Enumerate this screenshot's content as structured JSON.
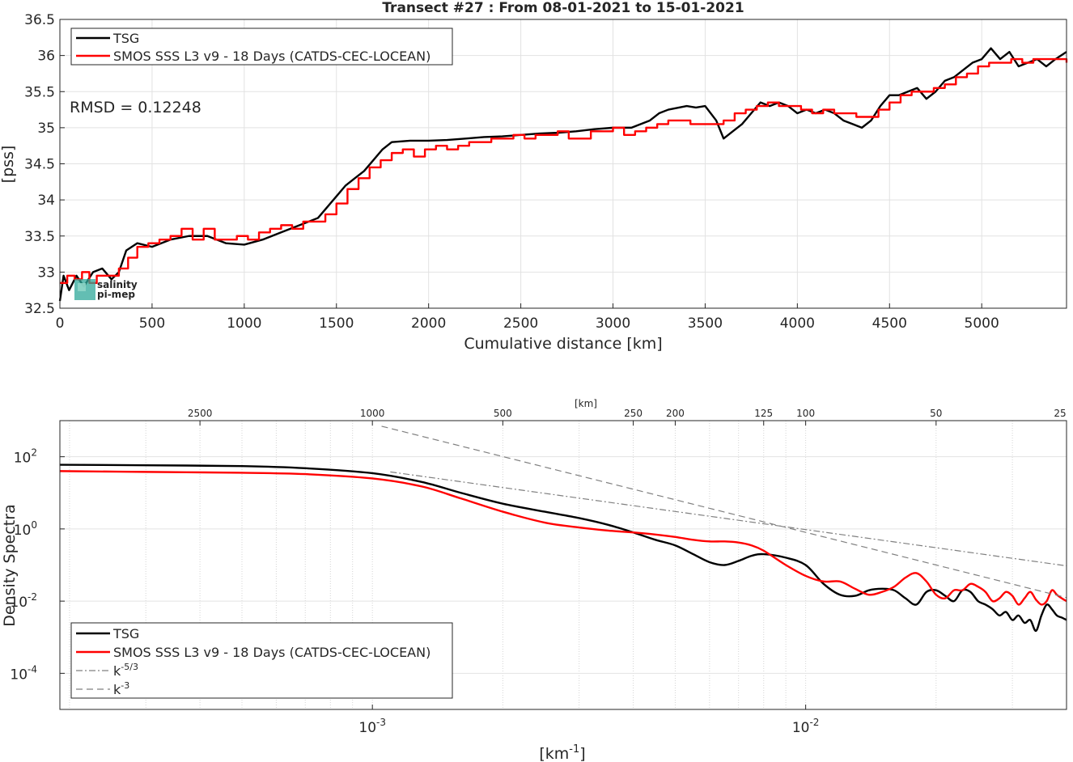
{
  "figure": {
    "title": "Transect #27 : From 08-01-2021 to 15-01-2021",
    "logo_text": [
      "salinity",
      "pi-mep"
    ]
  },
  "chart_data": [
    {
      "type": "line",
      "title": "Transect #27 : From 08-01-2021 to 15-01-2021",
      "xlabel": "Cumulative distance [km]",
      "ylabel": "[pss]",
      "xlim": [
        0,
        5460
      ],
      "ylim": [
        32.5,
        36.5
      ],
      "xticks": [
        0,
        500,
        1000,
        1500,
        2000,
        2500,
        3000,
        3500,
        4000,
        4500,
        5000
      ],
      "yticks": [
        32.5,
        33,
        33.5,
        34,
        34.5,
        35,
        35.5,
        36,
        36.5
      ],
      "grid": true,
      "legend_position": "top-left",
      "annotation": "RMSD = 0.12248",
      "series": [
        {
          "name": "TSG",
          "color": "#000000",
          "x": [
            0,
            20,
            50,
            90,
            130,
            180,
            230,
            280,
            320,
            360,
            420,
            500,
            600,
            700,
            800,
            900,
            1000,
            1100,
            1200,
            1300,
            1400,
            1450,
            1500,
            1550,
            1600,
            1650,
            1700,
            1750,
            1800,
            1900,
            2000,
            2100,
            2200,
            2300,
            2400,
            2500,
            2600,
            2700,
            2800,
            2900,
            3000,
            3100,
            3200,
            3250,
            3300,
            3400,
            3450,
            3500,
            3560,
            3600,
            3650,
            3700,
            3750,
            3800,
            3850,
            3900,
            3950,
            4000,
            4050,
            4100,
            4150,
            4200,
            4250,
            4300,
            4350,
            4400,
            4450,
            4500,
            4550,
            4600,
            4650,
            4700,
            4750,
            4800,
            4850,
            4900,
            4950,
            5000,
            5050,
            5100,
            5150,
            5200,
            5250,
            5300,
            5350,
            5400,
            5460
          ],
          "y": [
            32.6,
            32.95,
            32.75,
            32.95,
            32.8,
            33.0,
            33.05,
            32.9,
            33.0,
            33.3,
            33.4,
            33.35,
            33.45,
            33.5,
            33.5,
            33.4,
            33.38,
            33.45,
            33.55,
            33.65,
            33.75,
            33.9,
            34.05,
            34.2,
            34.3,
            34.4,
            34.55,
            34.7,
            34.8,
            34.82,
            34.82,
            34.83,
            34.85,
            34.87,
            34.88,
            34.9,
            34.92,
            34.93,
            34.95,
            34.98,
            35.0,
            35.0,
            35.1,
            35.2,
            35.25,
            35.3,
            35.28,
            35.3,
            35.1,
            34.85,
            34.95,
            35.05,
            35.2,
            35.35,
            35.3,
            35.35,
            35.3,
            35.2,
            35.25,
            35.2,
            35.25,
            35.2,
            35.1,
            35.05,
            35.0,
            35.1,
            35.3,
            35.45,
            35.45,
            35.5,
            35.55,
            35.4,
            35.5,
            35.65,
            35.7,
            35.8,
            35.9,
            35.95,
            36.1,
            35.95,
            36.05,
            35.85,
            35.9,
            35.95,
            35.85,
            35.95,
            36.05
          ]
        },
        {
          "name": "SMOS SSS L3 v9 - 18 Days (CATDS-CEC-LOCEAN)",
          "color": "#ff0000",
          "x": [
            0,
            40,
            80,
            120,
            160,
            200,
            260,
            320,
            370,
            420,
            480,
            540,
            600,
            660,
            720,
            780,
            840,
            900,
            960,
            1020,
            1080,
            1140,
            1200,
            1260,
            1320,
            1380,
            1440,
            1500,
            1560,
            1620,
            1680,
            1740,
            1800,
            1860,
            1920,
            1980,
            2040,
            2100,
            2160,
            2220,
            2280,
            2340,
            2400,
            2460,
            2520,
            2580,
            2640,
            2700,
            2760,
            2820,
            2880,
            2940,
            3000,
            3060,
            3120,
            3180,
            3240,
            3300,
            3360,
            3420,
            3480,
            3540,
            3600,
            3660,
            3720,
            3780,
            3840,
            3900,
            3960,
            4020,
            4080,
            4140,
            4200,
            4260,
            4320,
            4380,
            4440,
            4500,
            4560,
            4620,
            4680,
            4740,
            4800,
            4860,
            4920,
            4980,
            5040,
            5100,
            5160,
            5220,
            5280,
            5340,
            5400,
            5460
          ],
          "y": [
            32.85,
            32.95,
            32.9,
            33.0,
            32.85,
            32.95,
            32.95,
            33.05,
            33.2,
            33.35,
            33.4,
            33.45,
            33.5,
            33.6,
            33.45,
            33.6,
            33.45,
            33.45,
            33.5,
            33.45,
            33.55,
            33.6,
            33.65,
            33.6,
            33.7,
            33.7,
            33.8,
            33.95,
            34.15,
            34.3,
            34.45,
            34.55,
            34.65,
            34.7,
            34.6,
            34.7,
            34.75,
            34.7,
            34.75,
            34.8,
            34.8,
            34.85,
            34.85,
            34.9,
            34.85,
            34.9,
            34.9,
            34.95,
            34.85,
            34.85,
            34.95,
            34.95,
            35.0,
            34.9,
            34.95,
            35.0,
            35.05,
            35.1,
            35.1,
            35.05,
            35.05,
            35.05,
            35.1,
            35.2,
            35.25,
            35.3,
            35.35,
            35.3,
            35.3,
            35.25,
            35.2,
            35.25,
            35.2,
            35.2,
            35.15,
            35.15,
            35.25,
            35.35,
            35.45,
            35.5,
            35.5,
            35.55,
            35.6,
            35.7,
            35.75,
            35.85,
            35.9,
            35.9,
            35.95,
            35.9,
            35.95,
            35.95,
            35.95,
            35.9
          ]
        }
      ]
    },
    {
      "type": "line",
      "title": "",
      "xlabel": "[km^-1]",
      "xlabel_parts": [
        "[km",
        "-1",
        "]"
      ],
      "ylabel": "Density Spectra",
      "xscale": "log",
      "yscale": "log",
      "xlim": [
        0.00019,
        0.04
      ],
      "ylim": [
        1e-05,
        1000
      ],
      "xticks": [
        0.001,
        0.01
      ],
      "xtick_labels": [
        [
          "10",
          "-3"
        ],
        [
          "10",
          "-2"
        ]
      ],
      "yticks": [
        0.0001,
        0.01,
        1,
        100
      ],
      "ytick_labels": [
        [
          "10",
          "-4"
        ],
        [
          "10",
          "-2"
        ],
        [
          "10",
          "0"
        ],
        [
          "10",
          "2"
        ]
      ],
      "top_axis_label": "[km]",
      "top_ticks_km": [
        2500,
        1000,
        500,
        250,
        200,
        125,
        100,
        50,
        25
      ],
      "grid": true,
      "legend_position": "bottom-left",
      "legend_entries": [
        {
          "label": "TSG",
          "sup": "",
          "color": "#000000",
          "style": "solid"
        },
        {
          "label": "SMOS SSS L3 v9 - 18 Days (CATDS-CEC-LOCEAN)",
          "sup": "",
          "color": "#ff0000",
          "style": "solid"
        },
        {
          "label": "k",
          "sup": "-5/3",
          "color": "#808080",
          "style": "dashdot"
        },
        {
          "label": "k",
          "sup": "-3",
          "color": "#808080",
          "style": "dashed"
        }
      ],
      "series": [
        {
          "name": "TSG",
          "color": "#000000",
          "x": [
            0.00019,
            0.0003,
            0.0005,
            0.0007,
            0.001,
            0.0013,
            0.0016,
            0.002,
            0.0025,
            0.003,
            0.0035,
            0.004,
            0.0045,
            0.005,
            0.0055,
            0.006,
            0.0065,
            0.007,
            0.0075,
            0.008,
            0.009,
            0.01,
            0.011,
            0.012,
            0.013,
            0.014,
            0.015,
            0.016,
            0.017,
            0.018,
            0.019,
            0.02,
            0.021,
            0.022,
            0.023,
            0.024,
            0.025,
            0.026,
            0.027,
            0.028,
            0.029,
            0.03,
            0.031,
            0.032,
            0.033,
            0.034,
            0.035,
            0.036,
            0.037,
            0.038,
            0.039,
            0.04
          ],
          "y": [
            60,
            58,
            55,
            48,
            35,
            20,
            10,
            5,
            3,
            2,
            1.3,
            0.8,
            0.5,
            0.35,
            0.2,
            0.12,
            0.1,
            0.13,
            0.18,
            0.2,
            0.16,
            0.1,
            0.03,
            0.015,
            0.014,
            0.02,
            0.022,
            0.02,
            0.012,
            0.008,
            0.018,
            0.02,
            0.014,
            0.01,
            0.02,
            0.018,
            0.01,
            0.008,
            0.006,
            0.004,
            0.005,
            0.003,
            0.004,
            0.0025,
            0.003,
            0.0015,
            0.004,
            0.008,
            0.006,
            0.004,
            0.0035,
            0.003
          ]
        },
        {
          "name": "SMOS SSS L3 v9 - 18 Days (CATDS-CEC-LOCEAN)",
          "color": "#ff0000",
          "x": [
            0.00019,
            0.0003,
            0.0005,
            0.0007,
            0.001,
            0.0013,
            0.0016,
            0.002,
            0.0025,
            0.003,
            0.0035,
            0.004,
            0.0045,
            0.005,
            0.0055,
            0.006,
            0.0065,
            0.007,
            0.0075,
            0.008,
            0.009,
            0.01,
            0.011,
            0.012,
            0.013,
            0.014,
            0.015,
            0.016,
            0.017,
            0.018,
            0.019,
            0.02,
            0.021,
            0.022,
            0.023,
            0.024,
            0.025,
            0.026,
            0.027,
            0.028,
            0.029,
            0.03,
            0.031,
            0.032,
            0.033,
            0.034,
            0.035,
            0.036,
            0.037,
            0.038,
            0.039,
            0.04
          ],
          "y": [
            40,
            38,
            36,
            33,
            25,
            15,
            7,
            3,
            1.5,
            1.1,
            0.9,
            0.8,
            0.7,
            0.6,
            0.5,
            0.45,
            0.45,
            0.42,
            0.35,
            0.25,
            0.1,
            0.05,
            0.035,
            0.035,
            0.022,
            0.015,
            0.018,
            0.025,
            0.045,
            0.06,
            0.035,
            0.015,
            0.012,
            0.02,
            0.02,
            0.03,
            0.025,
            0.018,
            0.01,
            0.012,
            0.018,
            0.014,
            0.008,
            0.012,
            0.018,
            0.011,
            0.008,
            0.01,
            0.02,
            0.015,
            0.012,
            0.01
          ]
        },
        {
          "name": "k^-5/3",
          "color": "#808080",
          "style": "dashdot",
          "x": [
            0.0011,
            0.04
          ],
          "y": [
            38,
            0.095
          ]
        },
        {
          "name": "k^-3",
          "color": "#808080",
          "style": "dashed",
          "x": [
            0.00105,
            0.04
          ],
          "y": [
            700,
            0.0125
          ]
        }
      ]
    }
  ]
}
